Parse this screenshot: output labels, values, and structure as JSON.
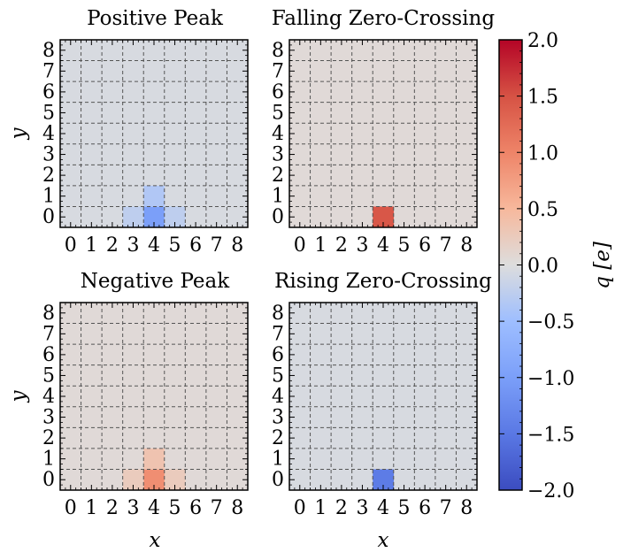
{
  "chart_data": {
    "type": "heatmap",
    "panels": [
      {
        "title": "Positive Peak",
        "ylabel": "y",
        "xlabel": "",
        "background": -0.05,
        "cells": [
          {
            "x": 4,
            "y": 0,
            "q": -1.0
          },
          {
            "x": 4,
            "y": 1,
            "q": -0.35
          },
          {
            "x": 3,
            "y": 0,
            "q": -0.25
          },
          {
            "x": 5,
            "y": 0,
            "q": -0.25
          }
        ]
      },
      {
        "title": "Falling Zero-Crossing",
        "ylabel": "",
        "xlabel": "",
        "background": 0.05,
        "cells": [
          {
            "x": 4,
            "y": 0,
            "q": 1.45
          }
        ]
      },
      {
        "title": "Negative Peak",
        "ylabel": "y",
        "xlabel": "x",
        "background": 0.05,
        "cells": [
          {
            "x": 4,
            "y": 0,
            "q": 0.9
          },
          {
            "x": 4,
            "y": 1,
            "q": 0.35
          },
          {
            "x": 3,
            "y": 0,
            "q": 0.25
          },
          {
            "x": 5,
            "y": 0,
            "q": 0.25
          }
        ]
      },
      {
        "title": "Rising Zero-Crossing",
        "ylabel": "",
        "xlabel": "x",
        "background": -0.05,
        "cells": [
          {
            "x": 4,
            "y": 0,
            "q": -1.45
          }
        ]
      }
    ],
    "x_ticks": [
      "0",
      "1",
      "2",
      "3",
      "4",
      "5",
      "6",
      "7",
      "8"
    ],
    "y_ticks": [
      "0",
      "1",
      "2",
      "3",
      "4",
      "5",
      "6",
      "7",
      "8"
    ],
    "colorbar": {
      "label": "q [e]",
      "min": -2.0,
      "max": 2.0,
      "ticks": [
        "2.0",
        "1.5",
        "1.0",
        "0.5",
        "0.0",
        "−0.5",
        "−1.0",
        "−1.5",
        "−2.0"
      ],
      "colormap": "coolwarm"
    },
    "grid": true
  }
}
